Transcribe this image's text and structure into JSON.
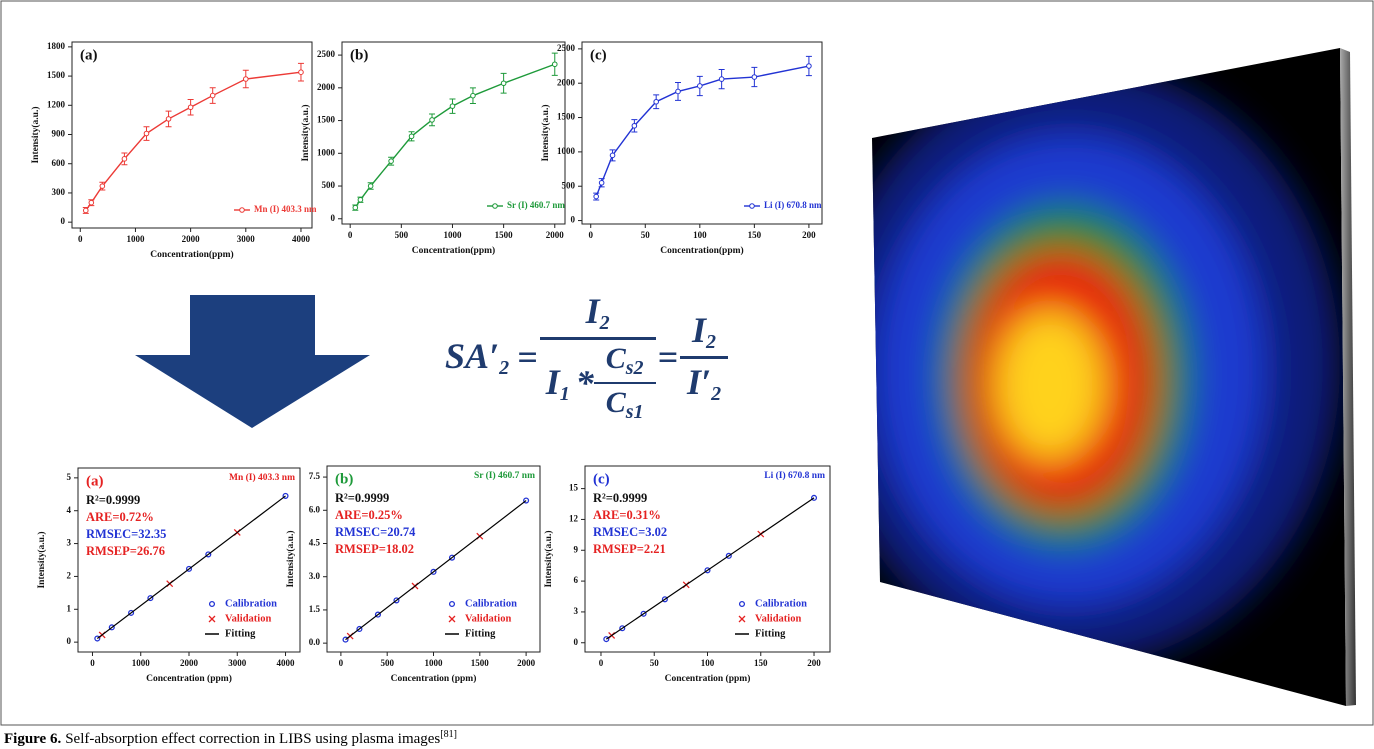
{
  "chart_data": [
    {
      "type": "line",
      "panel": "(a)",
      "xlabel": "Concentration(ppm)",
      "ylabel": "Intensity(a.u.)",
      "x": [
        100,
        200,
        400,
        800,
        1200,
        1600,
        2000,
        2400,
        3000,
        4000
      ],
      "series": [
        {
          "name": "Mn (I) 403.3 nm",
          "color": "#ec3a36",
          "values": [
            120,
            200,
            370,
            650,
            910,
            1060,
            1180,
            1300,
            1470,
            1540
          ],
          "errors": [
            30,
            30,
            40,
            60,
            70,
            80,
            80,
            80,
            90,
            90
          ]
        }
      ],
      "xlim": [
        -150,
        4200
      ],
      "xticks": [
        0,
        1000,
        2000,
        3000,
        4000
      ],
      "ylim": [
        -60,
        1850
      ],
      "yticks": [
        0,
        300,
        600,
        900,
        1200,
        1500,
        1800
      ],
      "legend": "lower right"
    },
    {
      "type": "line",
      "panel": "(b)",
      "xlabel": "Concentration(ppm)",
      "ylabel": "Intensity(a.u.)",
      "x": [
        50,
        100,
        200,
        400,
        600,
        800,
        1000,
        1200,
        1500,
        2000
      ],
      "series": [
        {
          "name": "Sr (I) 460.7 nm",
          "color": "#1e9a3a",
          "values": [
            170,
            290,
            500,
            880,
            1260,
            1510,
            1720,
            1880,
            2070,
            2360
          ],
          "errors": [
            40,
            40,
            50,
            60,
            70,
            90,
            110,
            120,
            150,
            170
          ]
        }
      ],
      "xlim": [
        -80,
        2100
      ],
      "xticks": [
        0,
        500,
        1000,
        1500,
        2000
      ],
      "ylim": [
        -80,
        2700
      ],
      "yticks": [
        0,
        500,
        1000,
        1500,
        2000,
        2500
      ],
      "legend": "lower right"
    },
    {
      "type": "line",
      "panel": "(c)",
      "xlabel": "Concentration(ppm)",
      "ylabel": "Intensity(a.u.)",
      "x": [
        5,
        10,
        20,
        40,
        60,
        80,
        100,
        120,
        150,
        200
      ],
      "series": [
        {
          "name": "Li (I) 670.8 nm",
          "color": "#2233d4",
          "values": [
            350,
            550,
            950,
            1380,
            1730,
            1880,
            1960,
            2060,
            2090,
            2250
          ],
          "errors": [
            50,
            60,
            80,
            90,
            100,
            130,
            140,
            140,
            140,
            140
          ]
        }
      ],
      "xlim": [
        -8,
        212
      ],
      "xticks": [
        0,
        50,
        100,
        150,
        200
      ],
      "ylim": [
        -50,
        2600
      ],
      "yticks": [
        0,
        500,
        1000,
        1500,
        2000,
        2500
      ],
      "legend": "lower right"
    },
    {
      "type": "scatter",
      "panel": "(a)",
      "panel_color": "#e52222",
      "title": "Mn (I) 403.3 nm",
      "title_color": "#e52222",
      "annotations": [
        {
          "text": "R²=0.9999",
          "color": "#111111"
        },
        {
          "text": "ARE=0.72%",
          "color": "#e52222"
        },
        {
          "text": "RMSEC=32.35",
          "color": "#2233d4"
        },
        {
          "text": "RMSEP=26.76",
          "color": "#e52222"
        }
      ],
      "xlabel": "Concentration (ppm)",
      "ylabel": "Intensity(a.u.)",
      "series": [
        {
          "name": "Calibration",
          "color": "#2233d4",
          "marker": "circle",
          "x": [
            100,
            400,
            800,
            1200,
            2000,
            2400,
            4000
          ],
          "values": [
            0.11,
            0.45,
            0.89,
            1.34,
            2.23,
            2.67,
            4.45
          ]
        },
        {
          "name": "Validation",
          "color": "#e52222",
          "marker": "cross",
          "x": [
            200,
            1600,
            3000
          ],
          "values": [
            0.22,
            1.78,
            3.34
          ]
        },
        {
          "name": "Fitting",
          "color": "#000000",
          "marker": "line",
          "x": [
            100,
            4000
          ],
          "values": [
            0.11,
            4.45
          ]
        }
      ],
      "xlim": [
        -300,
        4300
      ],
      "xticks": [
        0,
        1000,
        2000,
        3000,
        4000
      ],
      "ylim": [
        -0.3,
        5.3
      ],
      "yticks": [
        0,
        1,
        2,
        3,
        4,
        5
      ],
      "legend": "lower right"
    },
    {
      "type": "scatter",
      "panel": "(b)",
      "panel_color": "#1e9a3a",
      "title": "Sr (I) 460.7 nm",
      "title_color": "#1e9a3a",
      "annotations": [
        {
          "text": "R²=0.9999",
          "color": "#111111"
        },
        {
          "text": "ARE=0.25%",
          "color": "#e52222"
        },
        {
          "text": "RMSEC=20.74",
          "color": "#2233d4"
        },
        {
          "text": "RMSEP=18.02",
          "color": "#e52222"
        }
      ],
      "xlabel": "Concentration (ppm)",
      "ylabel": "Intensity(a.u.)",
      "series": [
        {
          "name": "Calibration",
          "color": "#2233d4",
          "marker": "circle",
          "x": [
            50,
            200,
            400,
            600,
            1000,
            1200,
            2000
          ],
          "values": [
            0.16,
            0.64,
            1.29,
            1.93,
            3.22,
            3.86,
            6.44
          ]
        },
        {
          "name": "Validation",
          "color": "#e52222",
          "marker": "cross",
          "x": [
            100,
            800,
            1500
          ],
          "values": [
            0.32,
            2.58,
            4.83
          ]
        },
        {
          "name": "Fitting",
          "color": "#000000",
          "marker": "line",
          "x": [
            50,
            2000
          ],
          "values": [
            0.16,
            6.44
          ]
        }
      ],
      "xlim": [
        -150,
        2150
      ],
      "xticks": [
        0,
        500,
        1000,
        1500,
        2000
      ],
      "ylim": [
        -0.4,
        8.0
      ],
      "yticks": [
        {
          "value": 0,
          "label": "0.0"
        },
        1.5,
        {
          "value": 3,
          "label": "3.0"
        },
        4.5,
        {
          "value": 6,
          "label": "6.0"
        },
        7.5
      ],
      "legend": "lower right"
    },
    {
      "type": "scatter",
      "panel": "(c)",
      "panel_color": "#2233d4",
      "title": "Li (I) 670.8 nm",
      "title_color": "#2233d4",
      "annotations": [
        {
          "text": "R²=0.9999",
          "color": "#111111"
        },
        {
          "text": "ARE=0.31%",
          "color": "#e52222"
        },
        {
          "text": "RMSEC=3.02",
          "color": "#2233d4"
        },
        {
          "text": "RMSEP=2.21",
          "color": "#e52222"
        }
      ],
      "xlabel": "Concentration (ppm)",
      "ylabel": "Intensity(a.u.)",
      "series": [
        {
          "name": "Calibration",
          "color": "#2233d4",
          "marker": "circle",
          "x": [
            5,
            20,
            40,
            60,
            100,
            120,
            200
          ],
          "values": [
            0.35,
            1.41,
            2.82,
            4.23,
            7.05,
            8.46,
            14.1
          ]
        },
        {
          "name": "Validation",
          "color": "#e52222",
          "marker": "cross",
          "x": [
            10,
            80,
            150
          ],
          "values": [
            0.71,
            5.64,
            10.58
          ]
        },
        {
          "name": "Fitting",
          "color": "#000000",
          "marker": "line",
          "x": [
            5,
            200
          ],
          "values": [
            0.35,
            14.1
          ]
        }
      ],
      "xlim": [
        -15,
        215
      ],
      "xticks": [
        0,
        50,
        100,
        150,
        200
      ],
      "ylim": [
        -0.9,
        17.2
      ],
      "yticks": [
        0,
        3,
        6,
        9,
        12,
        15
      ],
      "legend": "lower right"
    }
  ],
  "formula": {
    "lhs": {
      "base": "SA′",
      "sub": "2"
    },
    "eq": "=",
    "numerator": {
      "base": "I",
      "sub": "2"
    },
    "denominator": {
      "base": "I",
      "sub": "1"
    },
    "times": "*",
    "ratio_top": {
      "base": "C",
      "sub": "s2"
    },
    "ratio_bottom": {
      "base": "C",
      "sub": "s1"
    },
    "result_top": {
      "base": "I",
      "sub": "2"
    },
    "result_bottom": {
      "base": "I′",
      "sub": "2"
    }
  },
  "caption": {
    "label": "Figure 6.",
    "text": "Self-absorption effect correction in LIBS using plasma images",
    "ref": "[81]"
  }
}
